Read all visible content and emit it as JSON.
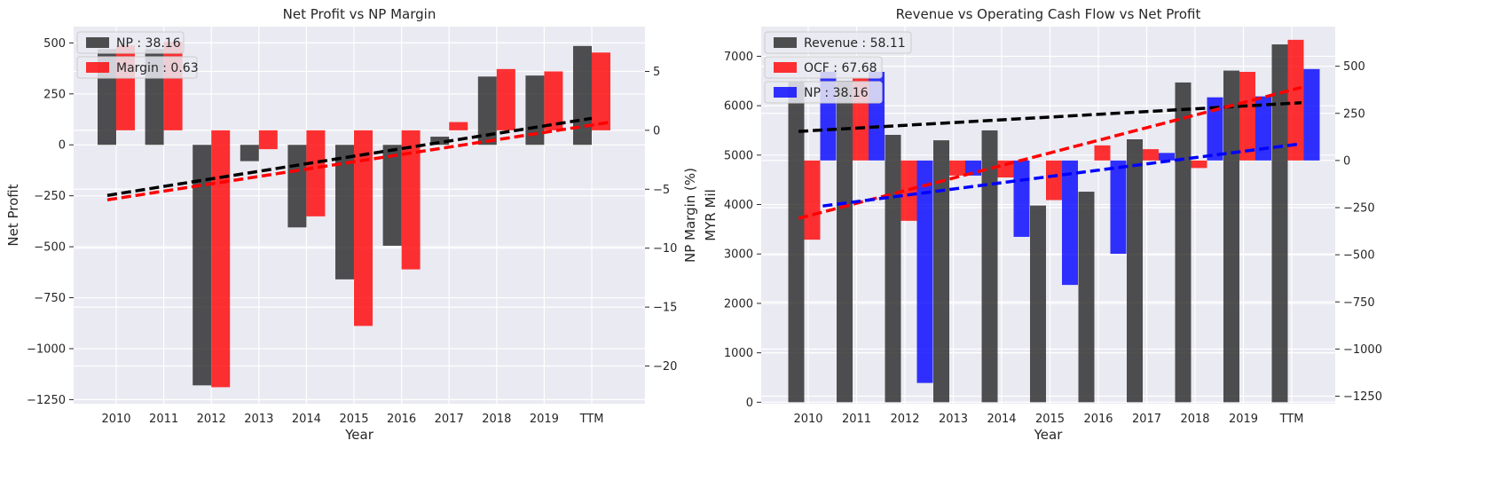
{
  "colors": {
    "axes_bg": "#eaeaf2",
    "grid": "#ffffff",
    "np_bar": "#262626",
    "revenue_bar": "#262626",
    "margin_bar": "#ff0000",
    "ocf_bar": "#ff0000",
    "np_blue_bar": "#0000ff",
    "trend_black": "#000000",
    "trend_red": "#ff0000",
    "trend_blue": "#0000ff"
  },
  "chart_data": [
    {
      "type": "bar",
      "title": "Net Profit vs NP Margin",
      "xlabel": "Year",
      "ylabel": "Net Profit",
      "y2label": "NP Margin (%)",
      "categories": [
        "2010",
        "2011",
        "2012",
        "2013",
        "2014",
        "2015",
        "2016",
        "2017",
        "2018",
        "2019",
        "TTM"
      ],
      "ylim": [
        -1270,
        580
      ],
      "y2lim": [
        -23.2,
        8.8
      ],
      "yticks": [
        "500",
        "250",
        "0",
        "−250",
        "−500",
        "−750",
        "−1000",
        "−1250"
      ],
      "y2ticks": [
        "5",
        "0",
        "−5",
        "−10",
        "−15",
        "−20"
      ],
      "legend": [
        "NP : 38.16",
        "Margin : 0.63"
      ],
      "legend_position": "top-left",
      "grid": true,
      "series": [
        {
          "name": "NP",
          "axis": "left",
          "color": "np_bar",
          "values": [
            470,
            470,
            -1180,
            -80,
            -405,
            -660,
            -495,
            40,
            335,
            340,
            485
          ]
        },
        {
          "name": "Margin",
          "axis": "right",
          "color": "margin_bar",
          "values": [
            7.2,
            7.5,
            -21.8,
            -1.6,
            -7.3,
            -16.6,
            -11.8,
            0.7,
            5.2,
            5.0,
            6.6
          ]
        }
      ],
      "trends": [
        {
          "color": "trend_black",
          "axis": "left",
          "start": [
            0,
            -248
          ],
          "end": [
            10,
            130
          ]
        },
        {
          "color": "trend_red",
          "axis": "right",
          "start": [
            0,
            -5.9
          ],
          "end": [
            10,
            0.7
          ]
        }
      ]
    },
    {
      "type": "bar",
      "title": "Revenue vs Operating Cash Flow vs Net Profit",
      "xlabel": "Year",
      "ylabel": "MYR Mil",
      "categories": [
        "2010",
        "2011",
        "2012",
        "2013",
        "2014",
        "2015",
        "2016",
        "2017",
        "2018",
        "2019",
        "TTM"
      ],
      "ylim": [
        -30,
        7600
      ],
      "y2lim": [
        -1290,
        710
      ],
      "yticks": [
        "7000",
        "6000",
        "5000",
        "4000",
        "3000",
        "2000",
        "1000",
        "0"
      ],
      "y2ticks": [
        "500",
        "250",
        "0",
        "−250",
        "−500",
        "−750",
        "−1000",
        "−1250"
      ],
      "legend": [
        "Revenue : 58.11",
        "OCF : 67.68",
        "NP : 38.16"
      ],
      "legend_position": "top-left",
      "grid": true,
      "series": [
        {
          "name": "Revenue",
          "axis": "left",
          "color": "revenue_bar",
          "values": [
            6480,
            6500,
            5410,
            5300,
            5500,
            3980,
            4260,
            5320,
            6470,
            6710,
            7240
          ]
        },
        {
          "name": "OCF",
          "axis": "right",
          "color": "ocf_bar",
          "values": [
            -420,
            440,
            -320,
            -80,
            -90,
            -210,
            80,
            60,
            -40,
            470,
            640
          ]
        },
        {
          "name": "NP",
          "axis": "right",
          "color": "np_blue_bar",
          "values": [
            470,
            470,
            -1180,
            -80,
            -405,
            -660,
            -495,
            40,
            335,
            340,
            485
          ]
        }
      ],
      "trends": [
        {
          "color": "trend_black",
          "axis": "left",
          "start": [
            -0.2,
            5480
          ],
          "end": [
            10.2,
            6060
          ]
        },
        {
          "color": "trend_red",
          "axis": "left",
          "start": [
            -0.2,
            3720
          ],
          "end": [
            10.2,
            6370
          ]
        },
        {
          "color": "trend_blue",
          "axis": "left",
          "start": [
            0.3,
            3970
          ],
          "end": [
            10.2,
            5230
          ]
        }
      ]
    }
  ]
}
